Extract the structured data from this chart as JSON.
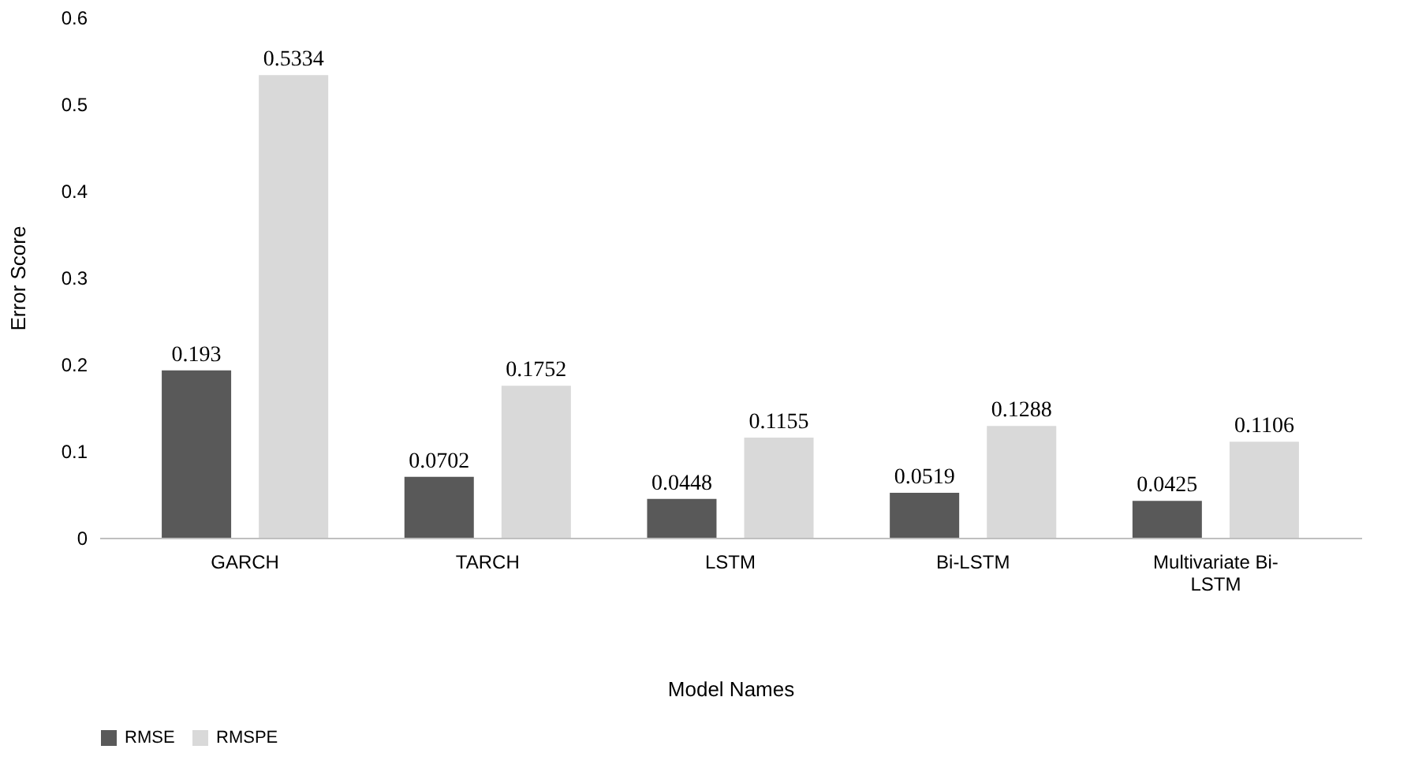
{
  "chart_data": {
    "type": "bar",
    "xlabel": "Model Names",
    "ylabel": "Error Score",
    "categories": [
      "GARCH",
      "TARCH",
      "LSTM",
      "Bi-LSTM",
      "Multivariate Bi-LSTM"
    ],
    "series": [
      {
        "name": "RMSE",
        "color": "#595959",
        "values": [
          0.193,
          0.0702,
          0.0448,
          0.0519,
          0.0425
        ]
      },
      {
        "name": "RMSPE",
        "color": "#d9d9d9",
        "values": [
          0.5334,
          0.1752,
          0.1155,
          0.1288,
          0.1106
        ]
      }
    ],
    "ylim": [
      0,
      0.6
    ],
    "yticks": [
      0,
      0.1,
      0.2,
      0.3,
      0.4,
      0.5,
      0.6
    ],
    "data_labels": true,
    "legend": "bottom",
    "grid": false
  }
}
